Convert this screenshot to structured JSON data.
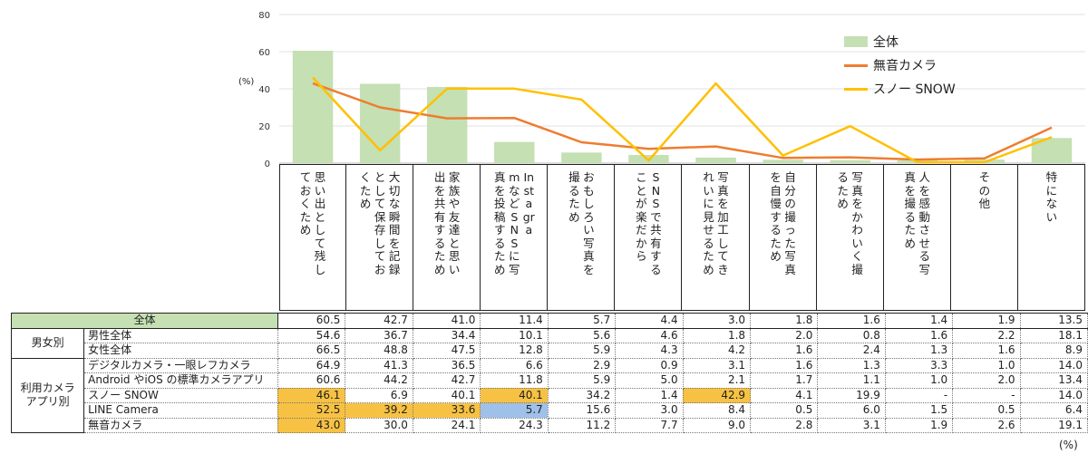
{
  "chart_data": {
    "type": "bar",
    "unit_left": "(%)",
    "unit_bottom": "(%)",
    "ylim": [
      0,
      80
    ],
    "yticks": [
      "0",
      "20",
      "40",
      "60",
      "80"
    ],
    "grid": true,
    "legend_position": "top-right",
    "categories": [
      "思い出として残しておくため",
      "大切な瞬間を記録として保存しておくため",
      "家族や友達と思い出を共有するため",
      "InstagramなどSNSに写真を投稿するため",
      "おもしろい写真を撮るため",
      "SNSで共有することが楽だから",
      "写真を加工してきれいに見せるため",
      "自分の撮った写真を自慢するため",
      "写真をかわいく撮るため",
      "人を感動させる写真を撮るため",
      "その他",
      "特にない"
    ],
    "series": [
      {
        "name": "全体",
        "kind": "bar",
        "color": "#c5e0b3",
        "values": [
          60.5,
          42.7,
          41.0,
          11.4,
          5.7,
          4.4,
          3.0,
          1.8,
          1.6,
          1.4,
          1.9,
          13.5
        ]
      },
      {
        "name": "無音カメラ",
        "kind": "line",
        "color": "#ed7d31",
        "values": [
          43.0,
          30.0,
          24.1,
          24.3,
          11.2,
          7.7,
          9.0,
          2.8,
          3.1,
          1.9,
          2.6,
          19.1
        ]
      },
      {
        "name": "スノー SNOW",
        "kind": "line",
        "color": "#ffc000",
        "values": [
          46.1,
          6.9,
          40.1,
          40.1,
          34.2,
          1.4,
          42.9,
          4.1,
          19.9,
          null,
          null,
          14.0
        ]
      }
    ],
    "table": {
      "total_label": "全体",
      "total_values": [
        "60.5",
        "42.7",
        "41.0",
        "11.4",
        "5.7",
        "4.4",
        "3.0",
        "1.8",
        "1.6",
        "1.4",
        "1.9",
        "13.5"
      ],
      "groups": [
        {
          "label": "男女別",
          "rows": [
            {
              "label": "男性全体",
              "values": [
                "54.6",
                "36.7",
                "34.4",
                "10.1",
                "5.6",
                "4.6",
                "1.8",
                "2.0",
                "0.8",
                "1.6",
                "2.2",
                "18.1"
              ],
              "highlights": []
            },
            {
              "label": "女性全体",
              "values": [
                "66.5",
                "48.8",
                "47.5",
                "12.8",
                "5.9",
                "4.3",
                "4.2",
                "1.6",
                "2.4",
                "1.3",
                "1.6",
                "8.9"
              ],
              "highlights": []
            }
          ]
        },
        {
          "label": "利用カメラアプリ別",
          "rows": [
            {
              "label": "デジタルカメラ・一眼レフカメラ",
              "values": [
                "64.9",
                "41.3",
                "36.5",
                "6.6",
                "2.9",
                "0.9",
                "3.1",
                "1.6",
                "1.3",
                "3.3",
                "1.0",
                "14.0"
              ],
              "highlights": []
            },
            {
              "label": "Android やiOS の標準カメラアプリ",
              "values": [
                "60.6",
                "44.2",
                "42.7",
                "11.8",
                "5.9",
                "5.0",
                "2.1",
                "1.7",
                "1.1",
                "1.0",
                "2.0",
                "13.4"
              ],
              "highlights": []
            },
            {
              "label": "スノー SNOW",
              "values": [
                "46.1",
                "6.9",
                "40.1",
                "40.1",
                "34.2",
                "1.4",
                "42.9",
                "4.1",
                "19.9",
                "-",
                "-",
                "14.0"
              ],
              "highlights": [
                "y",
                "",
                "",
                "y",
                "",
                "",
                "y",
                "",
                "",
                "",
                "",
                ""
              ]
            },
            {
              "label": "LINE Camera",
              "values": [
                "52.5",
                "39.2",
                "33.6",
                "5.7",
                "15.6",
                "3.0",
                "8.4",
                "0.5",
                "6.0",
                "1.5",
                "0.5",
                "6.4"
              ],
              "highlights": [
                "y",
                "y",
                "y",
                "b",
                "",
                "",
                "",
                "",
                "",
                "",
                "",
                ""
              ]
            },
            {
              "label": "無音カメラ",
              "values": [
                "43.0",
                "30.0",
                "24.1",
                "24.3",
                "11.2",
                "7.7",
                "9.0",
                "2.8",
                "3.1",
                "1.9",
                "2.6",
                "19.1"
              ],
              "highlights": [
                "y",
                "",
                "",
                "",
                "",
                "",
                "",
                "",
                "",
                "",
                "",
                ""
              ]
            }
          ]
        }
      ]
    }
  }
}
